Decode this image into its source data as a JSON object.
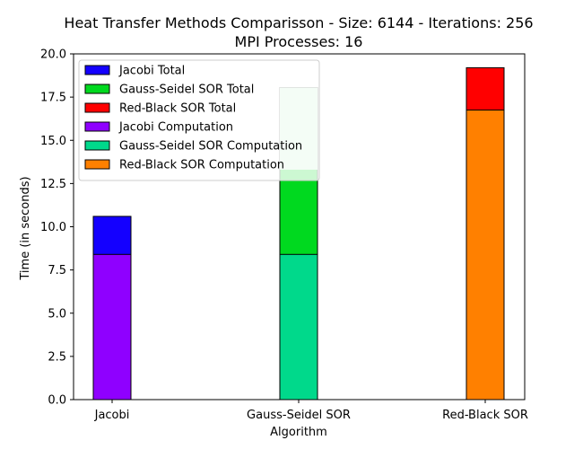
{
  "chart_data": {
    "type": "bar",
    "title_line1": "Heat Transfer Methods Comparisson - Size: 6144 - Iterations: 256",
    "title_line2": "MPI Processes: 16",
    "xlabel": "Algorithm",
    "ylabel": "Time (in seconds)",
    "categories": [
      "Jacobi",
      "Gauss-Seidel SOR",
      "Red-Black SOR"
    ],
    "ylim": [
      0,
      20
    ],
    "yticks": [
      "0.0",
      "2.5",
      "5.0",
      "7.5",
      "10.0",
      "12.5",
      "15.0",
      "17.5",
      "20.0"
    ],
    "grid": false,
    "legend_position": "upper-left",
    "series": [
      {
        "name": "Jacobi Total",
        "color": "#1400ff",
        "values": [
          10.6,
          null,
          null
        ]
      },
      {
        "name": "Gauss-Seidel SOR Total",
        "color": "#00d91f",
        "values": [
          null,
          18.05,
          null
        ]
      },
      {
        "name": "Red-Black SOR Total",
        "color": "#ff0000",
        "values": [
          null,
          null,
          19.2
        ]
      },
      {
        "name": "Jacobi Computation",
        "color": "#8f00ff",
        "values": [
          8.4,
          null,
          null
        ]
      },
      {
        "name": "Gauss-Seidel SOR Computation",
        "color": "#00d98b",
        "values": [
          null,
          8.4,
          null
        ]
      },
      {
        "name": "Red-Black SOR Computation",
        "color": "#ff8000",
        "values": [
          null,
          null,
          16.75
        ]
      }
    ],
    "faint_overlay": {
      "color": "#c8f5d2",
      "category_index": 1,
      "from": 13.3,
      "to": 18.05
    }
  }
}
